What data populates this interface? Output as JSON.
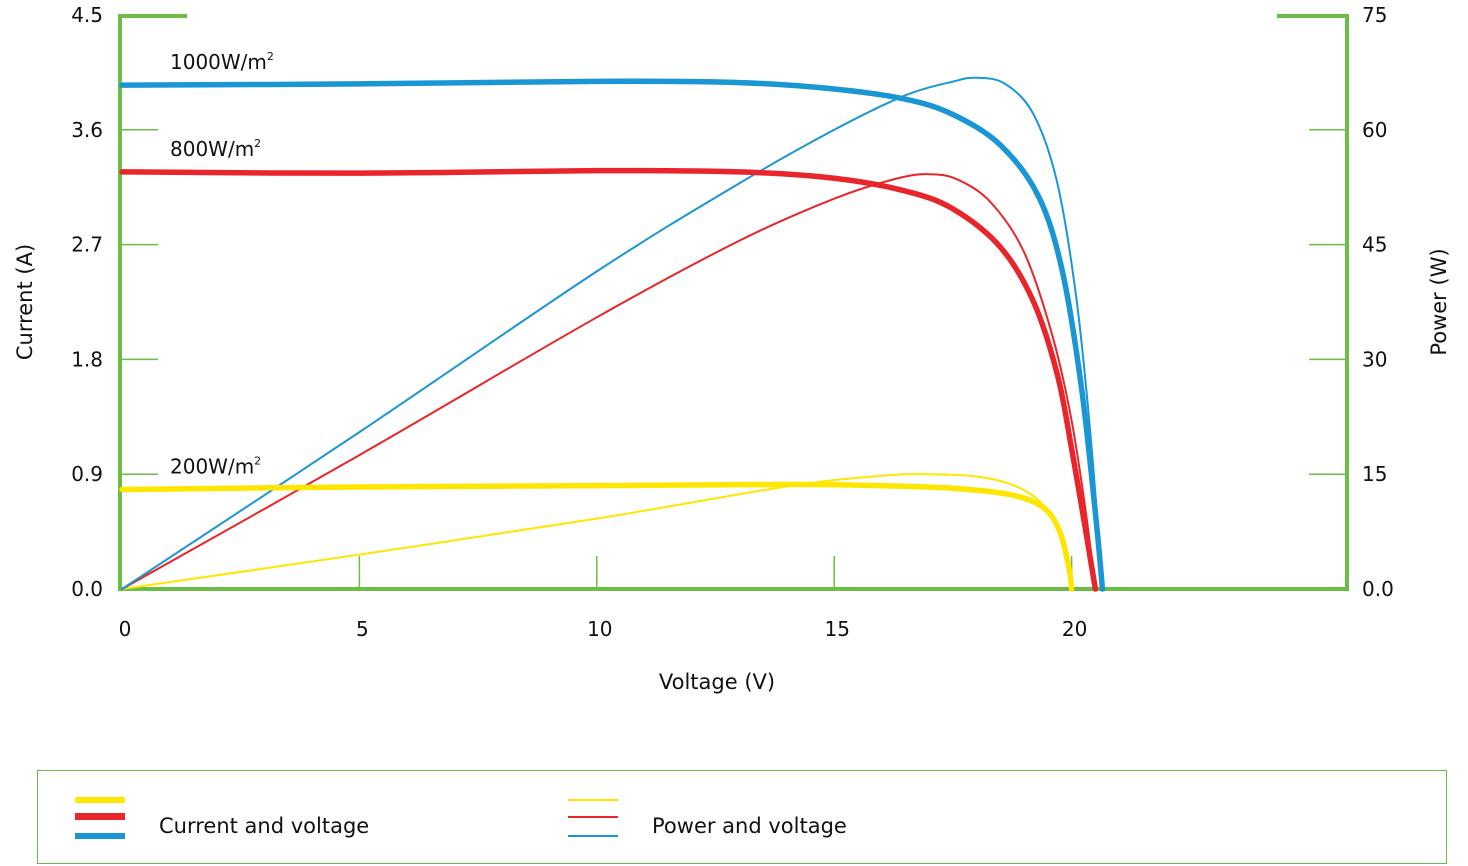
{
  "chart_data": {
    "type": "line",
    "xlabel": "Voltage (V)",
    "ylabel_left": "Current (A)",
    "ylabel_right": "Power (W)",
    "xlim": [
      0,
      25.8
    ],
    "ylim_left": [
      0,
      4.5
    ],
    "ylim_right": [
      0,
      75
    ],
    "x_ticks": [
      0,
      5,
      10,
      15,
      20
    ],
    "y_left_ticks": [
      "0.0",
      "0.9",
      "1.8",
      "2.7",
      "3.6",
      "4.5"
    ],
    "y_right_ticks": [
      "0.0",
      "15",
      "30",
      "45",
      "60",
      "75"
    ],
    "axis_color": "#6cbd45",
    "irradiance_labels": [
      {
        "text": "1000W/m",
        "sup": "2",
        "color": "#1a96d4"
      },
      {
        "text": "800W/m",
        "sup": "2",
        "color": "#e8252a"
      },
      {
        "text": "200W/m",
        "sup": "2",
        "color": "#ffe600"
      }
    ],
    "series": [
      {
        "kind": "current",
        "irradiance": "1000W/m2",
        "color": "#1a96d4",
        "axis": "left",
        "x": [
          0,
          5,
          10,
          13,
          15,
          16.5,
          17.5,
          18.5,
          19.3,
          19.8,
          20.2,
          20.5,
          20.65
        ],
        "y": [
          3.95,
          3.96,
          3.98,
          3.97,
          3.92,
          3.84,
          3.72,
          3.48,
          3.08,
          2.5,
          1.6,
          0.6,
          0.0
        ]
      },
      {
        "kind": "current",
        "irradiance": "800W/m2",
        "color": "#e8252a",
        "axis": "left",
        "x": [
          0,
          5,
          10,
          13,
          15,
          16.5,
          17.5,
          18.5,
          19.2,
          19.7,
          20.0,
          20.3,
          20.5
        ],
        "y": [
          3.27,
          3.26,
          3.28,
          3.27,
          3.22,
          3.12,
          2.98,
          2.68,
          2.25,
          1.68,
          1.1,
          0.45,
          0.0
        ]
      },
      {
        "kind": "current",
        "irradiance": "200W/m2",
        "color": "#ffe600",
        "axis": "left",
        "x": [
          0,
          5,
          10,
          14,
          16,
          17.5,
          18.7,
          19.4,
          19.75,
          19.95,
          20.0
        ],
        "y": [
          0.78,
          0.8,
          0.81,
          0.82,
          0.81,
          0.79,
          0.74,
          0.64,
          0.45,
          0.15,
          0.0
        ]
      },
      {
        "kind": "power",
        "irradiance": "1000W/m2",
        "color": "#1a96d4",
        "axis": "right",
        "x": [
          0,
          5,
          10,
          13,
          15,
          16.5,
          17.5,
          18.0,
          18.6,
          19.2,
          19.7,
          20.1,
          20.4,
          20.65
        ],
        "y": [
          0,
          20.5,
          41.5,
          53,
          60,
          64.5,
          66.3,
          66.8,
          66.0,
          62.0,
          53.0,
          38.0,
          20.0,
          0
        ]
      },
      {
        "kind": "power",
        "irradiance": "800W/m2",
        "color": "#e8252a",
        "axis": "right",
        "x": [
          0,
          5,
          10,
          13,
          15,
          16.3,
          17.0,
          17.6,
          18.3,
          19.0,
          19.6,
          20.0,
          20.3,
          20.5
        ],
        "y": [
          0,
          17.5,
          35.5,
          45.5,
          51.0,
          53.6,
          54.2,
          53.5,
          50.5,
          44.0,
          33.0,
          22.0,
          10.0,
          0
        ]
      },
      {
        "kind": "power",
        "irradiance": "200W/m2",
        "color": "#ffe600",
        "axis": "right",
        "x": [
          0,
          5,
          10,
          14,
          16,
          17.0,
          18.0,
          18.8,
          19.4,
          19.75,
          19.95,
          20.0
        ],
        "y": [
          0,
          4.5,
          9.2,
          13.4,
          14.8,
          15.0,
          14.7,
          13.5,
          11.0,
          7.0,
          2.5,
          0
        ]
      }
    ],
    "legend": [
      {
        "label": "Current and voltage",
        "style": "thick",
        "colors": [
          "#ffe600",
          "#e8252a",
          "#1a96d4"
        ]
      },
      {
        "label": "Power and voltage",
        "style": "thin",
        "colors": [
          "#ffe600",
          "#e8252a",
          "#1a96d4"
        ]
      }
    ]
  }
}
